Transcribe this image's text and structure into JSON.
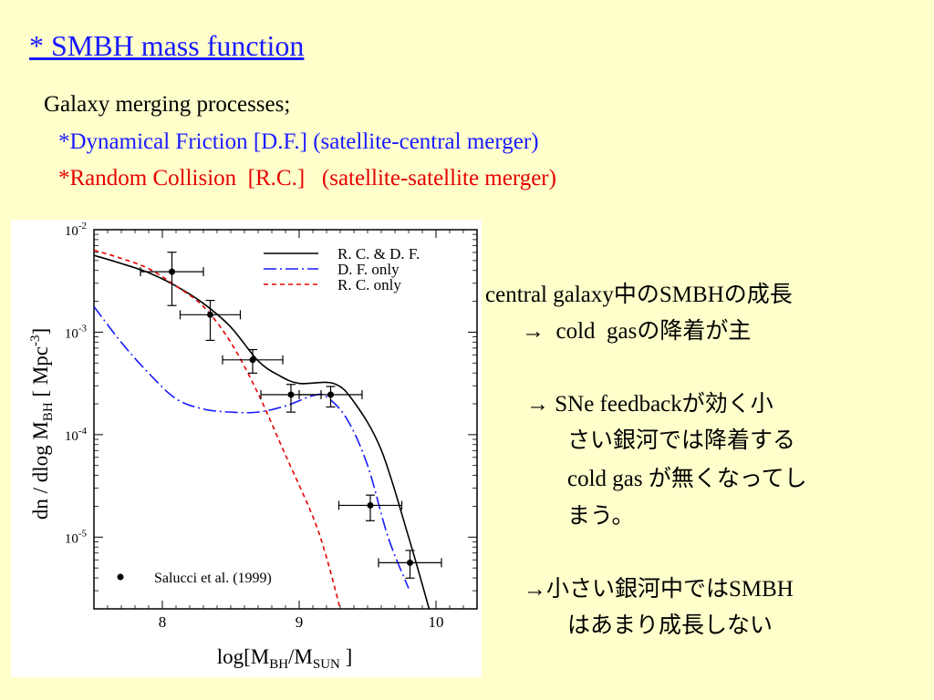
{
  "slide": {
    "title": "* SMBH mass function",
    "lines": [
      {
        "text": "Galaxy merging processes;",
        "color": "#000000"
      },
      {
        "text": "*Dynamical Friction [D.F.] (satellite-central merger)",
        "color": "#1a1aff"
      },
      {
        "text": "*Random Collision  [R.C.]   (satellite-satellite merger)",
        "color": "#e60000"
      }
    ],
    "notes": [
      "central galaxy中のSMBHの成長",
      "→  cold  gasの降着が主",
      "→ SNe feedbackが効く小",
      "さい銀河では降着する",
      "cold gas が無くなってし",
      "まう。",
      "→小さい銀河中ではSMBH",
      "はあまり成長しない"
    ]
  },
  "chart_data": {
    "type": "line",
    "xlabel": "log[M_BH/M_SUN ]",
    "ylabel": "dn / dlog M_BH  [ Mpc^-3]",
    "xlim": [
      7.5,
      10.3
    ],
    "ylim_log10": [
      -5.7,
      -2.0
    ],
    "y_scale": "log",
    "x_ticks": [
      "8",
      "9",
      "10"
    ],
    "y_ticks": [
      "10-2",
      "10-3",
      "10-4",
      "10-5"
    ],
    "legend_position": "top-right",
    "series": [
      {
        "name": "R. C. & D. F.",
        "color": "#000000",
        "dash": "solid",
        "x": [
          7.5,
          7.7,
          7.9,
          8.1,
          8.3,
          8.5,
          8.7,
          8.85,
          9.0,
          9.25,
          9.4,
          9.6,
          9.8,
          9.95
        ],
        "log10y": [
          -2.25,
          -2.33,
          -2.42,
          -2.55,
          -2.72,
          -2.95,
          -3.28,
          -3.42,
          -3.5,
          -3.5,
          -3.68,
          -4.15,
          -5.0,
          -5.7
        ]
      },
      {
        "name": "D. F. only",
        "color": "#1a1aff",
        "dash": "dashdot",
        "x": [
          7.5,
          7.7,
          7.9,
          8.1,
          8.3,
          8.5,
          8.7,
          8.9,
          9.1,
          9.2,
          9.35,
          9.5,
          9.65,
          9.8
        ],
        "log10y": [
          -2.75,
          -3.1,
          -3.4,
          -3.65,
          -3.75,
          -3.78,
          -3.78,
          -3.72,
          -3.62,
          -3.63,
          -3.85,
          -4.3,
          -5.0,
          -5.5
        ]
      },
      {
        "name": "R. C. only",
        "color": "#e60000",
        "dash": "dashed",
        "x": [
          7.5,
          7.7,
          7.9,
          8.1,
          8.3,
          8.5,
          8.7,
          8.9,
          9.1,
          9.2,
          9.3
        ],
        "log10y": [
          -2.2,
          -2.28,
          -2.38,
          -2.55,
          -2.75,
          -3.1,
          -3.6,
          -4.2,
          -4.8,
          -5.2,
          -5.7
        ]
      },
      {
        "name": "Salucci et al. (1999)",
        "color": "#000000",
        "dash": "points",
        "x": [
          8.07,
          8.35,
          8.66,
          8.94,
          9.23,
          9.52,
          9.81
        ],
        "log10y": [
          -2.41,
          -2.83,
          -3.27,
          -3.61,
          -3.61,
          -4.69,
          -5.25
        ],
        "xerr": [
          0.23,
          0.22,
          0.22,
          0.22,
          0.23,
          0.23,
          0.23
        ],
        "yerr_low": [
          0.33,
          0.25,
          0.13,
          0.17,
          0.12,
          0.15,
          0.15
        ],
        "yerr_high": [
          0.19,
          0.14,
          0.1,
          0.1,
          0.08,
          0.1,
          0.12
        ]
      }
    ]
  }
}
